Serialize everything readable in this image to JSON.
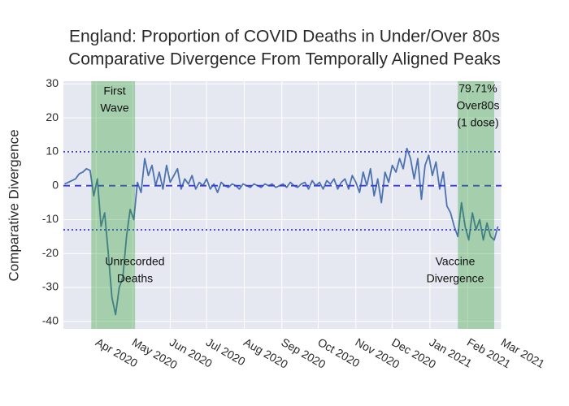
{
  "chart_data": {
    "type": "line",
    "title": "England: Proportion of COVID Deaths in Under/Over 80s",
    "subtitle": "Comparative Divergence From Temporally Aligned Peaks",
    "y_axis_title": "Comparative Divergence",
    "x": [
      "2020-03-06",
      "2020-03-09",
      "2020-03-12",
      "2020-03-15",
      "2020-03-18",
      "2020-03-21",
      "2020-03-24",
      "2020-03-27",
      "2020-03-30",
      "2020-04-02",
      "2020-04-05",
      "2020-04-08",
      "2020-04-11",
      "2020-04-14",
      "2020-04-17",
      "2020-04-20",
      "2020-04-23",
      "2020-04-26",
      "2020-04-29",
      "2020-05-02",
      "2020-05-05",
      "2020-05-08",
      "2020-05-11",
      "2020-05-14",
      "2020-05-17",
      "2020-05-20",
      "2020-05-23",
      "2020-05-26",
      "2020-05-29",
      "2020-06-01",
      "2020-06-04",
      "2020-06-07",
      "2020-06-10",
      "2020-06-13",
      "2020-06-16",
      "2020-06-19",
      "2020-06-22",
      "2020-06-25",
      "2020-06-28",
      "2020-07-01",
      "2020-07-04",
      "2020-07-07",
      "2020-07-10",
      "2020-07-13",
      "2020-07-16",
      "2020-07-19",
      "2020-07-22",
      "2020-07-25",
      "2020-07-28",
      "2020-07-31",
      "2020-08-03",
      "2020-08-06",
      "2020-08-09",
      "2020-08-12",
      "2020-08-15",
      "2020-08-18",
      "2020-08-21",
      "2020-08-24",
      "2020-08-27",
      "2020-08-30",
      "2020-09-02",
      "2020-09-05",
      "2020-09-08",
      "2020-09-11",
      "2020-09-14",
      "2020-09-17",
      "2020-09-20",
      "2020-09-23",
      "2020-09-26",
      "2020-09-29",
      "2020-10-02",
      "2020-10-05",
      "2020-10-08",
      "2020-10-11",
      "2020-10-14",
      "2020-10-17",
      "2020-10-20",
      "2020-10-23",
      "2020-10-26",
      "2020-10-29",
      "2020-11-01",
      "2020-11-04",
      "2020-11-07",
      "2020-11-10",
      "2020-11-13",
      "2020-11-16",
      "2020-11-19",
      "2020-11-22",
      "2020-11-25",
      "2020-11-28",
      "2020-12-01",
      "2020-12-04",
      "2020-12-07",
      "2020-12-10",
      "2020-12-13",
      "2020-12-16",
      "2020-12-19",
      "2020-12-22",
      "2020-12-25",
      "2020-12-28",
      "2020-12-31",
      "2021-01-03",
      "2021-01-06",
      "2021-01-09",
      "2021-01-12",
      "2021-01-15",
      "2021-01-18",
      "2021-01-21",
      "2021-01-24",
      "2021-01-27",
      "2021-01-30",
      "2021-02-02",
      "2021-02-05",
      "2021-02-08",
      "2021-02-11",
      "2021-02-14",
      "2021-02-17",
      "2021-02-20",
      "2021-02-23",
      "2021-02-26"
    ],
    "series": [
      {
        "color": "#4c72b0",
        "values": [
          0.5,
          1,
          1.5,
          2,
          3.5,
          4,
          5,
          4.5,
          -3,
          2,
          -12,
          -8,
          -20,
          -33,
          -38,
          -30,
          -27,
          -15,
          -7,
          -10,
          1,
          -2,
          8,
          3,
          6,
          0,
          4,
          -1,
          6,
          1,
          3,
          5,
          -1,
          2,
          0.5,
          3,
          -1,
          1,
          0,
          2,
          -1,
          0.5,
          -2,
          1,
          0,
          -0.5,
          0.5,
          0,
          -1,
          0.5,
          0,
          -0.5,
          0.5,
          0,
          -0.5,
          0.5,
          0,
          0.5,
          -0.5,
          0,
          0.5,
          -0.5,
          1,
          0,
          -0.5,
          0.5,
          1,
          -1,
          1.5,
          0,
          1,
          -1,
          1.5,
          0.5,
          2,
          -1,
          1,
          2,
          -1,
          3,
          1,
          -2,
          4,
          0,
          5,
          -3,
          2,
          -5,
          4,
          1,
          6,
          4,
          8,
          5,
          11,
          8,
          2,
          8,
          -4,
          6,
          9,
          3,
          7,
          -1,
          4,
          -6,
          -8,
          -12,
          -15,
          -5,
          -12,
          -16,
          -8,
          -13,
          -10,
          -16,
          -11,
          -15,
          -16,
          -12
        ]
      }
    ],
    "xlim": [
      "2020-03-05",
      "2021-03-01"
    ],
    "xticks": [
      {
        "value": "2020-04-01",
        "label": "Apr 2020"
      },
      {
        "value": "2020-05-01",
        "label": "May 2020"
      },
      {
        "value": "2020-06-01",
        "label": "Jun 2020"
      },
      {
        "value": "2020-07-01",
        "label": "Jul 2020"
      },
      {
        "value": "2020-08-01",
        "label": "Aug 2020"
      },
      {
        "value": "2020-09-01",
        "label": "Sep 2020"
      },
      {
        "value": "2020-10-01",
        "label": "Oct 2020"
      },
      {
        "value": "2020-11-01",
        "label": "Nov 2020"
      },
      {
        "value": "2020-12-01",
        "label": "Dec 2020"
      },
      {
        "value": "2021-01-01",
        "label": "Jan 2021"
      },
      {
        "value": "2021-02-01",
        "label": "Feb 2021"
      },
      {
        "value": "2021-03-01",
        "label": "Mar 2021"
      }
    ],
    "ylim": [
      -42.2,
      30.8
    ],
    "yticks": [
      -40,
      -30,
      -20,
      -10,
      0,
      10,
      20,
      30
    ],
    "grid": true,
    "hlines": [
      {
        "y": 10,
        "style": "dot",
        "color": "#3a3ad8"
      },
      {
        "y": 0,
        "style": "dash",
        "color": "#3a3ad8"
      },
      {
        "y": -13,
        "style": "dot",
        "color": "#3a3ad8"
      }
    ],
    "shaded_regions": [
      {
        "x0": "2020-03-28",
        "x1": "2020-05-03",
        "color": "#2e9e2e"
      },
      {
        "x0": "2021-01-24",
        "x1": "2021-02-23",
        "color": "#2e9e2e"
      }
    ],
    "annotations": [
      {
        "lines": [
          "First",
          "Wave"
        ]
      },
      {
        "lines": [
          "Unrecorded",
          "Deaths"
        ]
      },
      {
        "lines": [
          "79.71%",
          "Over80s",
          "(1 dose)"
        ]
      },
      {
        "lines": [
          "Vaccine",
          "Divergence"
        ]
      }
    ]
  }
}
